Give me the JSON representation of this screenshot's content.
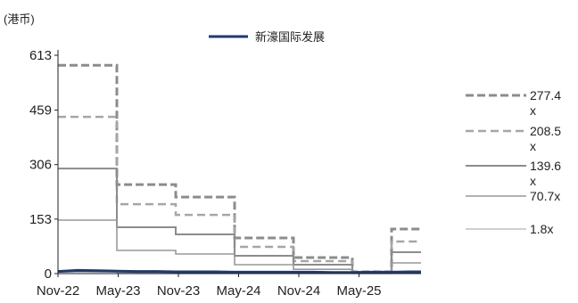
{
  "chart_data": {
    "type": "line",
    "unit_label": "(港币)",
    "legend": {
      "label": "新濠国际发展",
      "color": "#1f3a73",
      "placement": "top"
    },
    "x_tick_labels": [
      "Nov-22",
      "May-23",
      "Nov-23",
      "May-24",
      "Nov-24",
      "May-25"
    ],
    "y_ticks": [
      0,
      153,
      306,
      459,
      613
    ],
    "ylim": [
      0,
      613
    ],
    "xlim": [
      "2022-11",
      "2025-12"
    ],
    "grid": false,
    "price_series": {
      "name": "新濠国际发展",
      "color": "#1f3a73",
      "x": [
        "2022-11",
        "2023-01",
        "2023-03",
        "2023-05",
        "2023-07",
        "2023-09",
        "2023-11",
        "2024-01",
        "2024-03",
        "2024-05",
        "2024-07",
        "2024-09",
        "2024-11",
        "2025-01",
        "2025-03",
        "2025-05",
        "2025-07",
        "2025-09",
        "2025-11",
        "2025-12"
      ],
      "values": [
        6,
        9,
        8,
        7,
        6,
        6,
        5,
        5,
        5,
        4,
        4,
        4,
        4,
        4,
        3,
        3,
        4,
        4,
        5,
        5
      ]
    },
    "bands": [
      {
        "name": "277.4x",
        "label": "277.4\nx",
        "color": "#8c8c8c",
        "dash": "9 4",
        "width": 3,
        "x": [
          "2022-11",
          "2023-05",
          "2023-05",
          "2023-11",
          "2023-11",
          "2024-05",
          "2024-05",
          "2024-11",
          "2024-11",
          "2025-05",
          "2025-05",
          "2025-09",
          "2025-09",
          "2025-12"
        ],
        "values": [
          585,
          585,
          250,
          250,
          215,
          215,
          100,
          100,
          45,
          45,
          5,
          5,
          125,
          125
        ]
      },
      {
        "name": "208.5x",
        "label": "208.5\nx",
        "color": "#a6a6a6",
        "dash": "9 5",
        "width": 2.5,
        "x": [
          "2022-11",
          "2023-05",
          "2023-05",
          "2023-11",
          "2023-11",
          "2024-05",
          "2024-05",
          "2024-11",
          "2024-11",
          "2025-05",
          "2025-05",
          "2025-09",
          "2025-09",
          "2025-12"
        ],
        "values": [
          440,
          440,
          195,
          195,
          165,
          165,
          75,
          75,
          35,
          35,
          4,
          4,
          90,
          90
        ]
      },
      {
        "name": "139.6x",
        "label": "139.6\nx",
        "color": "#8c8c8c",
        "dash": "",
        "width": 2,
        "x": [
          "2022-11",
          "2023-05",
          "2023-05",
          "2023-11",
          "2023-11",
          "2024-05",
          "2024-05",
          "2024-11",
          "2024-11",
          "2025-05",
          "2025-05",
          "2025-09",
          "2025-09",
          "2025-12"
        ],
        "values": [
          295,
          295,
          130,
          130,
          110,
          110,
          50,
          50,
          25,
          25,
          3,
          3,
          60,
          60
        ]
      },
      {
        "name": "70.7x",
        "label": "70.7x",
        "color": "#999999",
        "dash": "",
        "width": 1.6,
        "x": [
          "2022-11",
          "2023-05",
          "2023-05",
          "2023-11",
          "2023-11",
          "2024-05",
          "2024-05",
          "2024-11",
          "2024-11",
          "2025-05",
          "2025-05",
          "2025-09",
          "2025-09",
          "2025-12"
        ],
        "values": [
          150,
          150,
          65,
          65,
          55,
          55,
          25,
          25,
          12,
          12,
          2,
          2,
          30,
          30
        ]
      },
      {
        "name": "1.8x",
        "label": "1.8x",
        "color": "#b3b3b3",
        "dash": "",
        "width": 1.2,
        "x": [
          "2022-11",
          "2023-05",
          "2023-05",
          "2023-11",
          "2023-11",
          "2024-05",
          "2024-05",
          "2024-11",
          "2024-11",
          "2025-05",
          "2025-05",
          "2025-09",
          "2025-09",
          "2025-12"
        ],
        "values": [
          4,
          4,
          2,
          2,
          2,
          2,
          1,
          1,
          1,
          1,
          0,
          0,
          1,
          1
        ]
      }
    ]
  }
}
